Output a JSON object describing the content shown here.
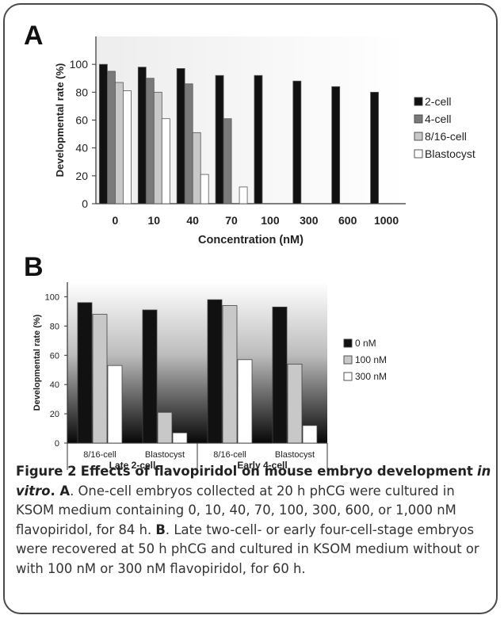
{
  "figure": {
    "panel_a_letter": "A",
    "panel_b_letter": "B",
    "caption": {
      "label": "Figure 2",
      "title": "Effects of flavopiridol on mouse embryo development",
      "title_italic": "in vitro",
      "a_ref": "A",
      "a_text": "One-cell embryos collected at 20 h phCG were cultured in KSOM medium containing 0, 10, 40, 70, 100, 300, 600, or 1,000 nM flavopiridol, for 84 h.",
      "b_ref": "B",
      "b_text": "Late two-cell- or early four-cell-stage embryos were recovered at 50 h phCG and cultured in KSOM medium without or with 100 nM or 300 nM flavopiridol, for 60 h."
    }
  },
  "colors": {
    "black": "#111111",
    "dark_gray": "#7a7a7a",
    "light_gray": "#c8c8c8",
    "white": "#ffffff"
  },
  "chart_data": [
    {
      "type": "bar",
      "panel": "A",
      "categories": [
        "0",
        "10",
        "40",
        "70",
        "100",
        "300",
        "600",
        "1000"
      ],
      "series": [
        {
          "name": "2-cell",
          "color": "#111111",
          "values": [
            100,
            98,
            97,
            92,
            92,
            88,
            84,
            80
          ]
        },
        {
          "name": "4-cell",
          "color": "#7a7a7a",
          "values": [
            95,
            90,
            86,
            61,
            null,
            null,
            null,
            null
          ]
        },
        {
          "name": "8/16-cell",
          "color": "#c8c8c8",
          "values": [
            87,
            80,
            51,
            null,
            null,
            null,
            null,
            null
          ]
        },
        {
          "name": "Blastocyst",
          "color": "#ffffff",
          "values": [
            81,
            61,
            21,
            12,
            null,
            null,
            null,
            null
          ]
        }
      ],
      "yticks": [
        "0",
        "20",
        "40",
        "60",
        "80",
        "100"
      ],
      "xlabel": "Concentration (nM)",
      "ylabel": "Developmental rate (%)",
      "ylim": [
        0,
        120
      ],
      "grid": false,
      "legend_position": "right"
    },
    {
      "type": "bar",
      "panel": "B",
      "categories": [
        "8/16-cell",
        "Blastocyst",
        "8/16-cell",
        "Blastocyst"
      ],
      "groups": [
        "Late 2-cell",
        "Early 4-cell"
      ],
      "series": [
        {
          "name": "0 nM",
          "color": "#111111",
          "values": [
            96,
            91,
            98,
            93
          ]
        },
        {
          "name": "100 nM",
          "color": "#c8c8c8",
          "values": [
            88,
            21,
            94,
            54
          ]
        },
        {
          "name": "300 nM",
          "color": "#ffffff",
          "values": [
            53,
            7,
            57,
            12
          ]
        }
      ],
      "yticks": [
        "0",
        "20",
        "40",
        "60",
        "80",
        "100"
      ],
      "xlabel": "",
      "ylabel": "Developmental rate (%)",
      "ylim": [
        0,
        110
      ],
      "grid": false,
      "legend_position": "right"
    }
  ]
}
